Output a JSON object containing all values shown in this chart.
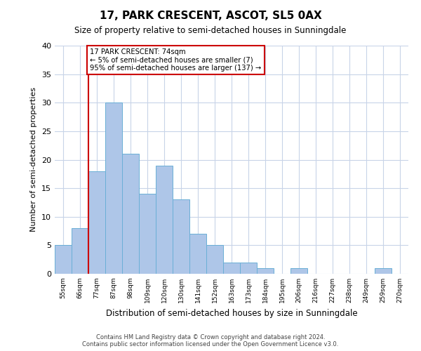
{
  "title": "17, PARK CRESCENT, ASCOT, SL5 0AX",
  "subtitle": "Size of property relative to semi-detached houses in Sunningdale",
  "xlabel": "Distribution of semi-detached houses by size in Sunningdale",
  "ylabel": "Number of semi-detached properties",
  "categories": [
    "55sqm",
    "66sqm",
    "77sqm",
    "87sqm",
    "98sqm",
    "109sqm",
    "120sqm",
    "130sqm",
    "141sqm",
    "152sqm",
    "163sqm",
    "173sqm",
    "184sqm",
    "195sqm",
    "206sqm",
    "216sqm",
    "227sqm",
    "238sqm",
    "249sqm",
    "259sqm",
    "270sqm"
  ],
  "values": [
    5,
    8,
    18,
    30,
    21,
    14,
    19,
    13,
    7,
    5,
    2,
    2,
    1,
    0,
    1,
    0,
    0,
    0,
    0,
    1,
    0
  ],
  "bar_color": "#aec6e8",
  "bar_edge_color": "#6aafd6",
  "property_line_color": "#cc0000",
  "annotation_text_line1": "17 PARK CRESCENT: 74sqm",
  "annotation_text_line2": "← 5% of semi-detached houses are smaller (7)",
  "annotation_text_line3": "95% of semi-detached houses are larger (137) →",
  "annotation_box_color": "#ffffff",
  "annotation_box_edge_color": "#cc0000",
  "ylim": [
    0,
    40
  ],
  "yticks": [
    0,
    5,
    10,
    15,
    20,
    25,
    30,
    35,
    40
  ],
  "footer_line1": "Contains HM Land Registry data © Crown copyright and database right 2024.",
  "footer_line2": "Contains public sector information licensed under the Open Government Licence v3.0.",
  "background_color": "#ffffff",
  "grid_color": "#c8d4e8"
}
